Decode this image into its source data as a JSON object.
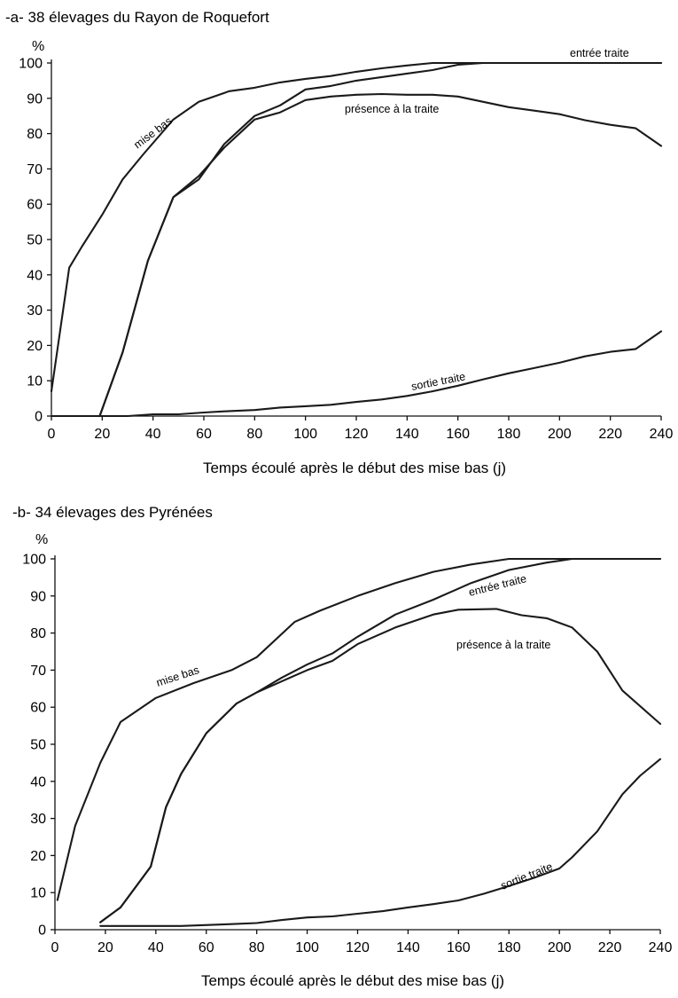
{
  "chart_data": [
    {
      "type": "line",
      "title": "-a- 38 élevages du Rayon de Roquefort",
      "ylabel": "%",
      "xlabel": "Temps écoulé après le début des mise bas (j)",
      "xlim": [
        0,
        240
      ],
      "ylim": [
        0,
        100
      ],
      "xticks": [
        "0",
        "20",
        "40",
        "60",
        "80",
        "100",
        "120",
        "140",
        "160",
        "180",
        "200",
        "220",
        "240"
      ],
      "yticks": [
        "0",
        "10",
        "20",
        "30",
        "40",
        "50",
        "60",
        "70",
        "80",
        "90",
        "100"
      ],
      "grid": false,
      "series": [
        {
          "name": "mise bas",
          "x": [
            0,
            7,
            12,
            20,
            28,
            36,
            48,
            58,
            70,
            80,
            90,
            100,
            110,
            120,
            130,
            140,
            150,
            160,
            170,
            180,
            190,
            200,
            210,
            220,
            230,
            240
          ],
          "y": [
            7,
            42,
            48,
            57,
            67,
            74,
            84,
            89,
            92,
            93,
            94.5,
            95.5,
            96.3,
            97.5,
            98.5,
            99.3,
            100,
            100,
            100,
            100,
            100,
            100,
            100,
            100,
            100,
            100
          ]
        },
        {
          "name": "entrée traite",
          "x": [
            19,
            28,
            38,
            48,
            58,
            68,
            80,
            90,
            100,
            110,
            120,
            130,
            140,
            150,
            160,
            170,
            180,
            190,
            200,
            210,
            220,
            230,
            240
          ],
          "y": [
            0,
            18,
            44,
            62,
            67,
            77,
            85,
            88,
            92.5,
            93.5,
            95,
            96,
            97,
            98,
            99.5,
            100,
            100,
            100,
            100,
            100,
            100,
            100,
            100
          ]
        },
        {
          "name": "présence à la traite",
          "x": [
            19,
            28,
            38,
            48,
            58,
            68,
            80,
            90,
            100,
            110,
            120,
            130,
            140,
            150,
            160,
            170,
            180,
            190,
            200,
            210,
            220,
            230,
            240
          ],
          "y": [
            0,
            18,
            44,
            62,
            68,
            76,
            84,
            86,
            89.5,
            90.5,
            91,
            91.2,
            91,
            91,
            90.5,
            89,
            87.5,
            86.5,
            85.5,
            83.8,
            82.5,
            81.5,
            76.5
          ]
        },
        {
          "name": "sortie traite",
          "x": [
            0,
            20,
            30,
            40,
            50,
            60,
            70,
            80,
            90,
            100,
            110,
            120,
            130,
            140,
            150,
            160,
            170,
            180,
            190,
            200,
            210,
            220,
            230,
            240
          ],
          "y": [
            0,
            0,
            0,
            0.5,
            0.5,
            1,
            1.4,
            1.7,
            2.4,
            2.8,
            3.2,
            4,
            4.7,
            5.7,
            7,
            8.6,
            10.4,
            12.1,
            13.6,
            15.1,
            16.9,
            18.2,
            19,
            24
          ]
        }
      ],
      "annotations": [
        "mise bas",
        "entrée traite",
        "présence à la  traite",
        "sortie traite"
      ]
    },
    {
      "type": "line",
      "title": "-b- 34 élevages des Pyrénées",
      "ylabel": "%",
      "xlabel": "Temps écoulé après le début des mise bas (j)",
      "xlim": [
        0,
        240
      ],
      "ylim": [
        0,
        100
      ],
      "xticks": [
        "0",
        "20",
        "40",
        "60",
        "80",
        "100",
        "120",
        "140",
        "160",
        "180",
        "200",
        "220",
        "240"
      ],
      "yticks": [
        "0",
        "10",
        "20",
        "30",
        "40",
        "50",
        "60",
        "70",
        "80",
        "90",
        "100"
      ],
      "grid": false,
      "series": [
        {
          "name": "mise bas",
          "x": [
            1,
            8,
            18,
            26,
            40,
            55,
            70,
            80,
            95,
            105,
            120,
            135,
            150,
            165,
            180,
            195,
            205,
            220,
            230,
            240
          ],
          "y": [
            8,
            28,
            45,
            56,
            62.5,
            66.5,
            70,
            73.5,
            83,
            86,
            90,
            93.5,
            96.5,
            98.5,
            100,
            100,
            100,
            100,
            100,
            100
          ],
          "label_at": 66
        },
        {
          "name": "entrée traite",
          "x": [
            18,
            26,
            38,
            44,
            50,
            60,
            72,
            80,
            90,
            100,
            110,
            120,
            135,
            150,
            165,
            180,
            195,
            205,
            220,
            230,
            240
          ],
          "y": [
            2,
            6,
            17,
            33,
            42,
            53,
            61,
            64,
            68,
            71.5,
            74.5,
            79,
            85,
            89,
            93.5,
            97,
            99,
            100,
            100,
            100,
            100
          ]
        },
        {
          "name": "présence à la traite",
          "x": [
            18,
            26,
            38,
            44,
            50,
            60,
            72,
            80,
            90,
            100,
            110,
            120,
            135,
            150,
            160,
            175,
            185,
            195,
            205,
            215,
            225,
            240
          ],
          "y": [
            2,
            6,
            17,
            33,
            42,
            53,
            61,
            64,
            67,
            70,
            72.5,
            77,
            81.5,
            85,
            86.3,
            86.5,
            84.8,
            84,
            81.5,
            75,
            64.5,
            55.5
          ]
        },
        {
          "name": "sortie traite",
          "x": [
            18,
            30,
            50,
            70,
            80,
            90,
            100,
            110,
            120,
            130,
            140,
            150,
            160,
            170,
            180,
            190,
            200,
            205,
            215,
            225,
            232,
            240
          ],
          "y": [
            1,
            1,
            1,
            1.5,
            1.8,
            2.6,
            3.3,
            3.6,
            4.3,
            5,
            6,
            6.9,
            7.9,
            9.7,
            11.8,
            14,
            16.5,
            19.5,
            26.5,
            36.5,
            41.5,
            46
          ]
        }
      ],
      "annotations": [
        "mise bas",
        "entrée traite",
        "présence à la  traite",
        "sortie traite"
      ]
    }
  ]
}
